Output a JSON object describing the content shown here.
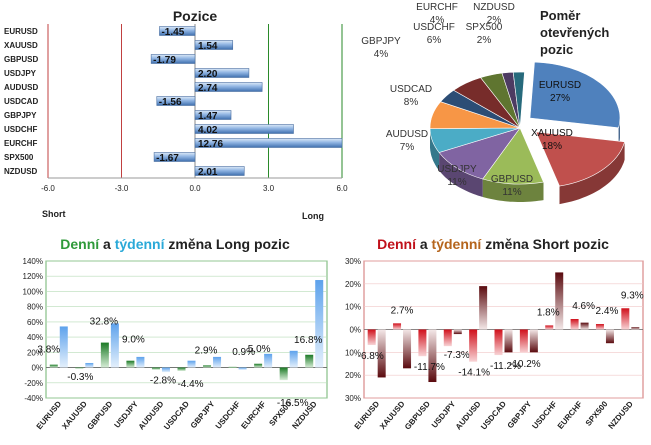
{
  "colors": {
    "bar_blue": "#6f9fd8",
    "bar_blue_light": "#d6e6f8",
    "green": "#2f9a3a",
    "cyan": "#2aa9d8",
    "red": "#c0101a",
    "brown": "#b5651d",
    "dark_red": "#6b0f14"
  },
  "chart_data": [
    {
      "type": "bar",
      "orientation": "horizontal",
      "title": "Pozice",
      "categories": [
        "EURUSD",
        "XAUUSD",
        "GBPUSD",
        "USDJPY",
        "AUDUSD",
        "USDCAD",
        "GBPJPY",
        "USDCHF",
        "EURCHF",
        "SPX500",
        "NZDUSD"
      ],
      "values": [
        -1.45,
        1.54,
        -1.79,
        2.2,
        2.74,
        -1.56,
        1.47,
        4.02,
        12.76,
        -1.67,
        2.01
      ],
      "value_labels": [
        "-1.45",
        "1.54",
        "-1.79",
        "2.20",
        "2.74",
        "-1.56",
        "1.47",
        "4.02",
        "12.76",
        "-1.67",
        "2.01"
      ],
      "xlim": [
        -6,
        6
      ],
      "ticks": [
        "-6.0",
        "-3.0",
        "0.0",
        "3.0",
        "6.0"
      ],
      "left_label": "Short",
      "right_label": "Long"
    },
    {
      "type": "pie",
      "title_lines": [
        "Poměr",
        "otevřených",
        "pozic"
      ],
      "slices": [
        {
          "name": "EURUSD",
          "value": 27,
          "label": "27%",
          "color": "#4f81bd"
        },
        {
          "name": "XAUUSD",
          "value": 18,
          "label": "18%",
          "color": "#c0504d"
        },
        {
          "name": "GBPUSD",
          "value": 11,
          "label": "11%",
          "color": "#9bbb59"
        },
        {
          "name": "USDJPY",
          "value": 11,
          "label": "11%",
          "color": "#8064a2"
        },
        {
          "name": "AUDUSD",
          "value": 7,
          "label": "7%",
          "color": "#4bacc6"
        },
        {
          "name": "USDCAD",
          "value": 8,
          "label": "8%",
          "color": "#f79646"
        },
        {
          "name": "GBPJPY",
          "value": 4,
          "label": "4%",
          "color": "#2c4d75"
        },
        {
          "name": "USDCHF",
          "value": 6,
          "label": "6%",
          "color": "#772c2a"
        },
        {
          "name": "EURCHF",
          "value": 4,
          "label": "4%",
          "color": "#5f7530"
        },
        {
          "name": "SPX500",
          "value": 2,
          "label": "2%",
          "color": "#4d3b62"
        },
        {
          "name": "NZDUSD",
          "value": 2,
          "label": "2%",
          "color": "#276a7c"
        }
      ]
    },
    {
      "type": "bar",
      "title_parts": [
        {
          "text": "Denní",
          "color": "#2f9a3a"
        },
        {
          "text": " a ",
          "color": "#222222"
        },
        {
          "text": "týdenní",
          "color": "#2aa9d8"
        },
        {
          "text": " změna Long pozic",
          "color": "#222222"
        }
      ],
      "categories": [
        "EURUSD",
        "XAUUSD",
        "GBPUSD",
        "USDJPY",
        "AUDUSD",
        "USDCAD",
        "GBPJPY",
        "USDCHF",
        "EURCHF",
        "SPX500",
        "NZDUSD"
      ],
      "series": [
        {
          "name": "Denní",
          "values": [
            3.8,
            -0.3,
            32.8,
            9.0,
            -2.8,
            -4.4,
            2.9,
            0.9,
            5.0,
            -16.5,
            16.8
          ]
        },
        {
          "name": "Týdenní",
          "values": [
            54,
            6,
            58,
            14,
            -6,
            9,
            14,
            -3,
            18,
            22,
            115
          ]
        }
      ],
      "data_labels": [
        "3.8%",
        "-0.3%",
        "32.8%",
        "9.0%",
        "-2.8%",
        "-4.4%",
        "2.9%",
        "0.9%",
        "5.0%",
        "-16.5%",
        "16.8%"
      ],
      "ylim": [
        -40,
        140
      ],
      "ticks": [
        "-40%",
        "-20%",
        "0%",
        "20%",
        "40%",
        "60%",
        "80%",
        "100%",
        "120%",
        "140%"
      ]
    },
    {
      "type": "bar",
      "title_parts": [
        {
          "text": "Denní",
          "color": "#c0101a"
        },
        {
          "text": " a ",
          "color": "#222222"
        },
        {
          "text": "týdenní",
          "color": "#b5651d"
        },
        {
          "text": " změna Short pozic",
          "color": "#222222"
        }
      ],
      "categories": [
        "EURUSD",
        "XAUUSD",
        "GBPUSD",
        "USDJPY",
        "AUDUSD",
        "USDCAD",
        "GBPJPY",
        "USDCHF",
        "EURCHF",
        "SPX500",
        "NZDUSD"
      ],
      "series": [
        {
          "name": "Denní",
          "values": [
            -6.8,
            2.7,
            -11.7,
            -7.3,
            -14.1,
            -11.2,
            -10.2,
            1.8,
            4.6,
            2.4,
            9.3
          ]
        },
        {
          "name": "Týdenní",
          "values": [
            -21,
            -17,
            -23,
            -2,
            19,
            -10,
            -10,
            25,
            3,
            -6,
            1
          ]
        }
      ],
      "data_labels": [
        "-6.8%",
        "2.7%",
        "-11.7%",
        "-7.3%",
        "-14.1%",
        "-11.2%",
        "-10.2%",
        "1.8%",
        "4.6%",
        "2.4%",
        "9.3%"
      ],
      "ylim": [
        -30,
        30
      ],
      "ticks": [
        "30%",
        "20%",
        "10%",
        "0%",
        "10%",
        "20%",
        "30%"
      ]
    }
  ]
}
